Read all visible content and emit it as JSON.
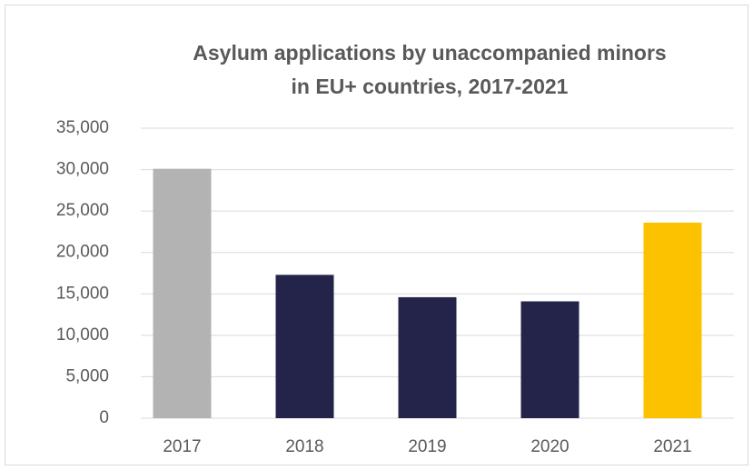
{
  "chart_data": {
    "type": "bar",
    "title": [
      "Asylum applications  by unaccompanied minors",
      "in EU+ countries, 2017-2021"
    ],
    "categories": [
      "2017",
      "2018",
      "2019",
      "2020",
      "2021"
    ],
    "values": [
      30100,
      17300,
      14600,
      14100,
      23600
    ],
    "colors": [
      "#b3b3b3",
      "#24244a",
      "#24244a",
      "#24244a",
      "#fcc200"
    ],
    "ylim": [
      0,
      35000
    ],
    "yticks": [
      0,
      {
        "value": 5000,
        "label": "5,000"
      },
      {
        "value": 10000,
        "label": "10,000"
      },
      {
        "value": 15000,
        "label": "15,000"
      },
      {
        "value": 20000,
        "label": "20,000"
      },
      {
        "value": 25000,
        "label": "25,000"
      },
      {
        "value": 30000,
        "label": "30,000"
      },
      {
        "value": 35000,
        "label": "35,000"
      }
    ],
    "grid": true
  }
}
